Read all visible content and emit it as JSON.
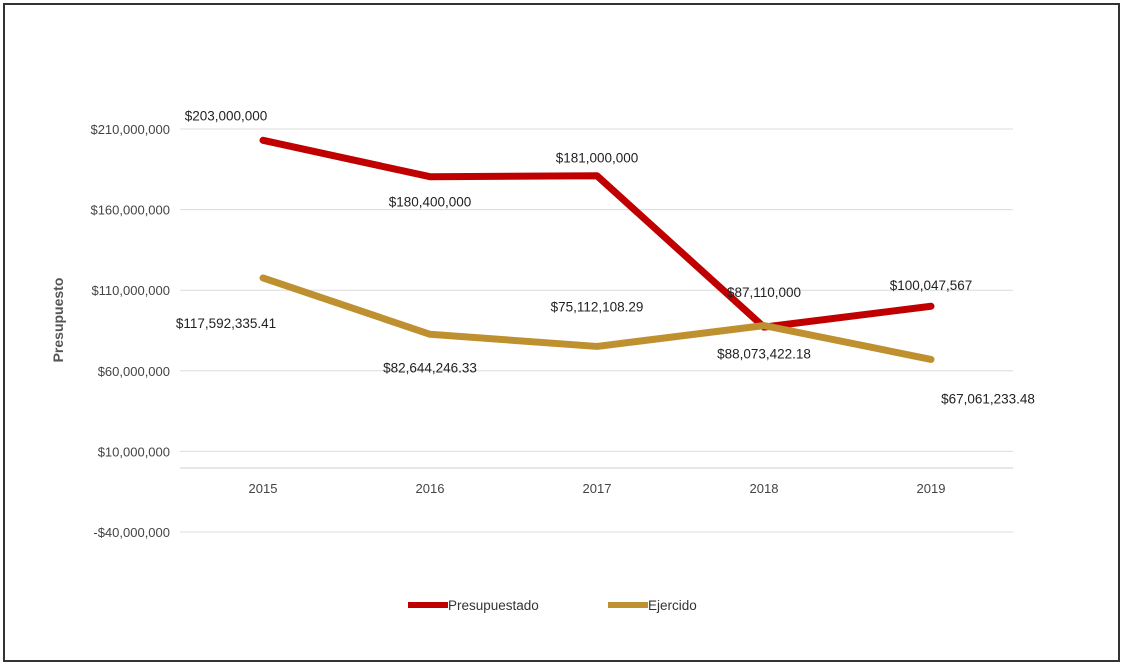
{
  "chart_data": {
    "type": "line",
    "title": "",
    "xlabel": "",
    "ylabel": "Presupuesto",
    "categories": [
      "2015",
      "2016",
      "2017",
      "2018",
      "2019"
    ],
    "ylim": [
      -40000000,
      210000000
    ],
    "yticks": [
      -40000000,
      10000000,
      60000000,
      110000000,
      160000000,
      210000000
    ],
    "ytick_labels": [
      "-$40,000,000",
      "$10,000,000",
      "$60,000,000",
      "$110,000,000",
      "$160,000,000",
      "$210,000,000"
    ],
    "grid": true,
    "legend_position": "bottom",
    "series": [
      {
        "name": "Presupuestado",
        "color": "#C00000",
        "values": [
          203000000,
          180400000,
          181000000,
          87110000,
          100047567
        ],
        "labels": [
          "$203,000,000",
          "$180,400,000",
          "$181,000,000",
          "$87,110,000",
          "$100,047,567"
        ]
      },
      {
        "name": "Ejercido",
        "color": "#BF9030",
        "values": [
          117592335.41,
          82644246.33,
          75112108.29,
          88073422.18,
          67061233.48
        ],
        "labels": [
          "$117,592,335.41",
          "$82,644,246.33",
          "$75,112,108.29",
          "$88,073,422.18",
          "$67,061,233.48"
        ]
      }
    ]
  }
}
